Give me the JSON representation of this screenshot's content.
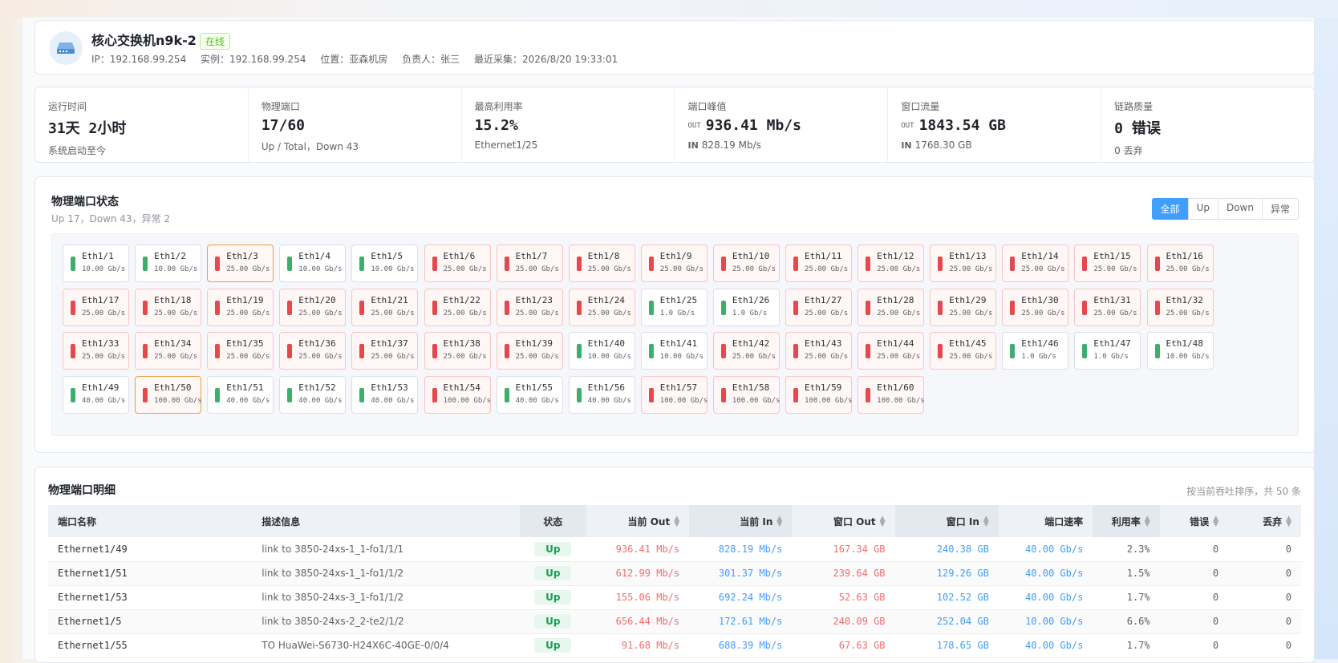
{
  "device": {
    "name": "核心交换机n9k-2",
    "status": "在线",
    "ip": "IP：192.168.99.254",
    "instance": "实例：192.168.99.254",
    "location": "位置：亚森机房",
    "owner": "负责人：张三",
    "last_collect": "最近采集：2026/8/20 19:33:01",
    "icon": "switch-icon"
  },
  "stats": [
    {
      "label": "运行时间",
      "value": "31天 2小时",
      "dir": "",
      "sub_dir": "",
      "sub": "系统启动至今"
    },
    {
      "label": "物理端口",
      "value": "17/60",
      "dir": "",
      "sub_dir": "",
      "sub": "Up / Total，Down 43"
    },
    {
      "label": "最高利用率",
      "value": "15.2%",
      "dir": "",
      "sub_dir": "",
      "sub": "Ethernet1/25"
    },
    {
      "label": "端口峰值",
      "value": "936.41 Mb/s",
      "dir": "OUT",
      "sub_dir": "IN",
      "sub": "828.19 Mb/s"
    },
    {
      "label": "窗口流量",
      "value": "1843.54 GB",
      "dir": "OUT",
      "sub_dir": "IN",
      "sub": "1768.30 GB"
    },
    {
      "label": "链路质量",
      "value": "0 错误",
      "dir": "",
      "sub_dir": "",
      "sub": "0 丢弃"
    }
  ],
  "port_status": {
    "title": "物理端口状态",
    "subtitle": "Up 17，Down 43，异常 2",
    "filters": [
      "全部",
      "Up",
      "Down",
      "异常"
    ],
    "active_filter": "全部",
    "colors": {
      "up": "#3daf6a",
      "down": "#e5484d",
      "warn_border": "#e6a23c"
    },
    "ports": [
      {
        "name": "Eth1/1",
        "speed": "10.00 Gb/s",
        "state": "up",
        "warn": false
      },
      {
        "name": "Eth1/2",
        "speed": "10.00 Gb/s",
        "state": "up",
        "warn": false
      },
      {
        "name": "Eth1/3",
        "speed": "25.00 Gb/s",
        "state": "down",
        "warn": true
      },
      {
        "name": "Eth1/4",
        "speed": "10.00 Gb/s",
        "state": "up",
        "warn": false
      },
      {
        "name": "Eth1/5",
        "speed": "10.00 Gb/s",
        "state": "up",
        "warn": false
      },
      {
        "name": "Eth1/6",
        "speed": "25.00 Gb/s",
        "state": "down",
        "warn": false
      },
      {
        "name": "Eth1/7",
        "speed": "25.00 Gb/s",
        "state": "down",
        "warn": false
      },
      {
        "name": "Eth1/8",
        "speed": "25.00 Gb/s",
        "state": "down",
        "warn": false
      },
      {
        "name": "Eth1/9",
        "speed": "25.00 Gb/s",
        "state": "down",
        "warn": false
      },
      {
        "name": "Eth1/10",
        "speed": "25.00 Gb/s",
        "state": "down",
        "warn": false
      },
      {
        "name": "Eth1/11",
        "speed": "25.00 Gb/s",
        "state": "down",
        "warn": false
      },
      {
        "name": "Eth1/12",
        "speed": "25.00 Gb/s",
        "state": "down",
        "warn": false
      },
      {
        "name": "Eth1/13",
        "speed": "25.00 Gb/s",
        "state": "down",
        "warn": false
      },
      {
        "name": "Eth1/14",
        "speed": "25.00 Gb/s",
        "state": "down",
        "warn": false
      },
      {
        "name": "Eth1/15",
        "speed": "25.00 Gb/s",
        "state": "down",
        "warn": false
      },
      {
        "name": "Eth1/16",
        "speed": "25.00 Gb/s",
        "state": "down",
        "warn": false
      },
      {
        "name": "Eth1/17",
        "speed": "25.00 Gb/s",
        "state": "down",
        "warn": false
      },
      {
        "name": "Eth1/18",
        "speed": "25.00 Gb/s",
        "state": "down",
        "warn": false
      },
      {
        "name": "Eth1/19",
        "speed": "25.00 Gb/s",
        "state": "down",
        "warn": false
      },
      {
        "name": "Eth1/20",
        "speed": "25.00 Gb/s",
        "state": "down",
        "warn": false
      },
      {
        "name": "Eth1/21",
        "speed": "25.00 Gb/s",
        "state": "down",
        "warn": false
      },
      {
        "name": "Eth1/22",
        "speed": "25.00 Gb/s",
        "state": "down",
        "warn": false
      },
      {
        "name": "Eth1/23",
        "speed": "25.00 Gb/s",
        "state": "down",
        "warn": false
      },
      {
        "name": "Eth1/24",
        "speed": "25.00 Gb/s",
        "state": "down",
        "warn": false
      },
      {
        "name": "Eth1/25",
        "speed": "1.0 Gb/s",
        "state": "up",
        "warn": false
      },
      {
        "name": "Eth1/26",
        "speed": "1.0 Gb/s",
        "state": "up",
        "warn": false
      },
      {
        "name": "Eth1/27",
        "speed": "25.00 Gb/s",
        "state": "down",
        "warn": false
      },
      {
        "name": "Eth1/28",
        "speed": "25.00 Gb/s",
        "state": "down",
        "warn": false
      },
      {
        "name": "Eth1/29",
        "speed": "25.00 Gb/s",
        "state": "down",
        "warn": false
      },
      {
        "name": "Eth1/30",
        "speed": "25.00 Gb/s",
        "state": "down",
        "warn": false
      },
      {
        "name": "Eth1/31",
        "speed": "25.00 Gb/s",
        "state": "down",
        "warn": false
      },
      {
        "name": "Eth1/32",
        "speed": "25.00 Gb/s",
        "state": "down",
        "warn": false
      },
      {
        "name": "Eth1/33",
        "speed": "25.00 Gb/s",
        "state": "down",
        "warn": false
      },
      {
        "name": "Eth1/34",
        "speed": "25.00 Gb/s",
        "state": "down",
        "warn": false
      },
      {
        "name": "Eth1/35",
        "speed": "25.00 Gb/s",
        "state": "down",
        "warn": false
      },
      {
        "name": "Eth1/36",
        "speed": "25.00 Gb/s",
        "state": "down",
        "warn": false
      },
      {
        "name": "Eth1/37",
        "speed": "25.00 Gb/s",
        "state": "down",
        "warn": false
      },
      {
        "name": "Eth1/38",
        "speed": "25.00 Gb/s",
        "state": "down",
        "warn": false
      },
      {
        "name": "Eth1/39",
        "speed": "25.00 Gb/s",
        "state": "down",
        "warn": false
      },
      {
        "name": "Eth1/40",
        "speed": "10.00 Gb/s",
        "state": "up",
        "warn": false
      },
      {
        "name": "Eth1/41",
        "speed": "10.00 Gb/s",
        "state": "up",
        "warn": false
      },
      {
        "name": "Eth1/42",
        "speed": "25.00 Gb/s",
        "state": "down",
        "warn": false
      },
      {
        "name": "Eth1/43",
        "speed": "25.00 Gb/s",
        "state": "down",
        "warn": false
      },
      {
        "name": "Eth1/44",
        "speed": "25.00 Gb/s",
        "state": "down",
        "warn": false
      },
      {
        "name": "Eth1/45",
        "speed": "25.00 Gb/s",
        "state": "down",
        "warn": false
      },
      {
        "name": "Eth1/46",
        "speed": "1.0 Gb/s",
        "state": "up",
        "warn": false
      },
      {
        "name": "Eth1/47",
        "speed": "1.0 Gb/s",
        "state": "up",
        "warn": false
      },
      {
        "name": "Eth1/48",
        "speed": "10.00 Gb/s",
        "state": "up",
        "warn": false
      },
      {
        "name": "Eth1/49",
        "speed": "40.00 Gb/s",
        "state": "up",
        "warn": false
      },
      {
        "name": "Eth1/50",
        "speed": "100.00 Gb/s",
        "state": "down",
        "warn": true
      },
      {
        "name": "Eth1/51",
        "speed": "40.00 Gb/s",
        "state": "up",
        "warn": false
      },
      {
        "name": "Eth1/52",
        "speed": "40.00 Gb/s",
        "state": "up",
        "warn": false
      },
      {
        "name": "Eth1/53",
        "speed": "40.00 Gb/s",
        "state": "up",
        "warn": false
      },
      {
        "name": "Eth1/54",
        "speed": "100.00 Gb/s",
        "state": "down",
        "warn": false
      },
      {
        "name": "Eth1/55",
        "speed": "40.00 Gb/s",
        "state": "up",
        "warn": false
      },
      {
        "name": "Eth1/56",
        "speed": "40.00 Gb/s",
        "state": "up",
        "warn": false
      },
      {
        "name": "Eth1/57",
        "speed": "100.00 Gb/s",
        "state": "down",
        "warn": false
      },
      {
        "name": "Eth1/58",
        "speed": "100.00 Gb/s",
        "state": "down",
        "warn": false
      },
      {
        "name": "Eth1/59",
        "speed": "100.00 Gb/s",
        "state": "down",
        "warn": false
      },
      {
        "name": "Eth1/60",
        "speed": "100.00 Gb/s",
        "state": "down",
        "warn": false
      }
    ]
  },
  "port_table": {
    "title": "物理端口明细",
    "sort_note": "按当前吞吐排序，共 50 条",
    "columns": [
      "端口名称",
      "描述信息",
      "状态",
      "当前 Out",
      "当前 In",
      "窗口 Out",
      "窗口 In",
      "端口速率",
      "利用率",
      "错误",
      "丢弃"
    ],
    "rows": [
      {
        "port": "Ethernet1/49",
        "desc": "link to 3850-24xs-1_1-fo1/1/1",
        "status": "Up",
        "cur_out": "936.41 Mb/s",
        "cur_in": "828.19 Mb/s",
        "win_out": "167.34 GB",
        "win_in": "240.38 GB",
        "speed": "40.00 Gb/s",
        "util": "2.3%",
        "err": "0",
        "drop": "0"
      },
      {
        "port": "Ethernet1/51",
        "desc": "link to 3850-24xs-1_1-fo1/1/2",
        "status": "Up",
        "cur_out": "612.99 Mb/s",
        "cur_in": "301.37 Mb/s",
        "win_out": "239.64 GB",
        "win_in": "129.26 GB",
        "speed": "40.00 Gb/s",
        "util": "1.5%",
        "err": "0",
        "drop": "0"
      },
      {
        "port": "Ethernet1/53",
        "desc": "link to 3850-24xs-3_1-fo1/1/2",
        "status": "Up",
        "cur_out": "155.06 Mb/s",
        "cur_in": "692.24 Mb/s",
        "win_out": "52.63 GB",
        "win_in": "102.52 GB",
        "speed": "40.00 Gb/s",
        "util": "1.7%",
        "err": "0",
        "drop": "0"
      },
      {
        "port": "Ethernet1/5",
        "desc": "link to 3850-24xs-2_2-te2/1/2",
        "status": "Up",
        "cur_out": "656.44 Mb/s",
        "cur_in": "172.61 Mb/s",
        "win_out": "240.09 GB",
        "win_in": "252.04 GB",
        "speed": "10.00 Gb/s",
        "util": "6.6%",
        "err": "0",
        "drop": "0"
      },
      {
        "port": "Ethernet1/55",
        "desc": "TO HuaWei-S6730-H24X6C-40GE-0/0/4",
        "status": "Up",
        "cur_out": "91.68 Mb/s",
        "cur_in": "688.39 Mb/s",
        "win_out": "67.63 GB",
        "win_in": "178.65 GB",
        "speed": "40.00 Gb/s",
        "util": "1.7%",
        "err": "0",
        "drop": "0"
      }
    ]
  }
}
